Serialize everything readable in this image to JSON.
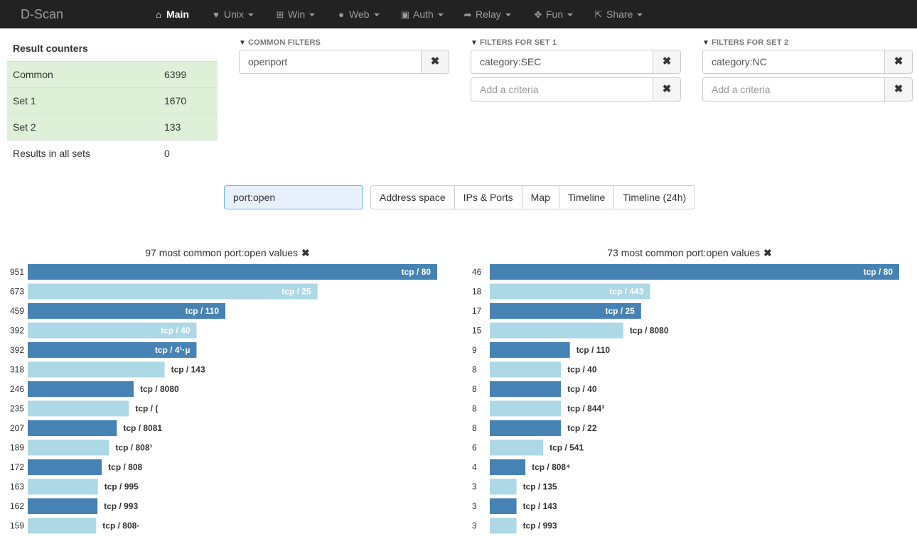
{
  "navbar": {
    "brand": "D-Scan",
    "items": [
      {
        "label": "Main",
        "icon": "home-icon",
        "glyph": "⌂",
        "active": true,
        "dropdown": false
      },
      {
        "label": "Unix",
        "icon": "heart-icon",
        "glyph": "♥",
        "active": false,
        "dropdown": true
      },
      {
        "label": "Win",
        "icon": "windows-icon",
        "glyph": "⊞",
        "active": false,
        "dropdown": true
      },
      {
        "label": "Web",
        "icon": "globe-icon",
        "glyph": "●",
        "active": false,
        "dropdown": true
      },
      {
        "label": "Auth",
        "icon": "lock-icon",
        "glyph": "▣",
        "active": false,
        "dropdown": true
      },
      {
        "label": "Relay",
        "icon": "share-arrow-icon",
        "glyph": "➦",
        "active": false,
        "dropdown": true
      },
      {
        "label": "Fun",
        "icon": "move-icon",
        "glyph": "✥",
        "active": false,
        "dropdown": true
      },
      {
        "label": "Share",
        "icon": "share-icon",
        "glyph": "⇱",
        "active": false,
        "dropdown": true
      }
    ]
  },
  "counters": {
    "title": "Result counters",
    "rows": [
      {
        "label": "Common",
        "value": "6399"
      },
      {
        "label": "Set 1",
        "value": "1670"
      },
      {
        "label": "Set 2",
        "value": "133"
      },
      {
        "label": "Results in all sets",
        "value": "0"
      }
    ]
  },
  "filters": {
    "common": {
      "title": "COMMON FILTERS",
      "fields": [
        {
          "value": "openport",
          "placeholder": ""
        }
      ]
    },
    "set1": {
      "title": "FILTERS FOR SET 1",
      "fields": [
        {
          "value": "category:SEC",
          "placeholder": ""
        },
        {
          "value": "",
          "placeholder": "Add a criteria"
        }
      ]
    },
    "set2": {
      "title": "FILTERS FOR SET 2",
      "fields": [
        {
          "value": "category:NC",
          "placeholder": ""
        },
        {
          "value": "",
          "placeholder": "Add a criteria"
        }
      ]
    },
    "remove_glyph": "✖"
  },
  "query": {
    "value": "port:open"
  },
  "tabs": [
    "Address space",
    "IPs & Ports",
    "Map",
    "Timeline",
    "Timeline (24h)"
  ],
  "colors": {
    "bar_dark": "#4682b4",
    "bar_light": "#add8e6"
  },
  "chart_data": [
    {
      "type": "bar",
      "orientation": "horizontal",
      "title": "97 most common port:open values",
      "close_glyph": "✖",
      "xlim": [
        0,
        951
      ],
      "categories": [
        "tcp / 80",
        "tcp / 25",
        "tcp / 110",
        "tcp / 40",
        "tcp / 4¹·µ",
        "tcp / 143",
        "tcp / 8080",
        "tcp / (",
        "tcp / 8081",
        "tcp / 808¹",
        "tcp / 808",
        "tcp / 995",
        "tcp / 993",
        "tcp / 808·"
      ],
      "values": [
        951,
        673,
        459,
        392,
        392,
        318,
        246,
        235,
        207,
        189,
        172,
        163,
        162,
        159
      ]
    },
    {
      "type": "bar",
      "orientation": "horizontal",
      "title": "73 most common port:open values",
      "close_glyph": "✖",
      "xlim": [
        0,
        46
      ],
      "categories": [
        "tcp / 80",
        "tcp / 443",
        "tcp / 25",
        "tcp / 8080",
        "tcp / 110",
        "tcp / 40",
        "tcp / 40",
        "tcp / 844³",
        "tcp / 22",
        "tcp / 541",
        "tcp / 808⁴",
        "tcp / 135",
        "tcp / 143",
        "tcp / 993"
      ],
      "values": [
        46,
        18,
        17,
        15,
        9,
        8,
        8,
        8,
        8,
        6,
        4,
        3,
        3,
        3
      ]
    }
  ]
}
